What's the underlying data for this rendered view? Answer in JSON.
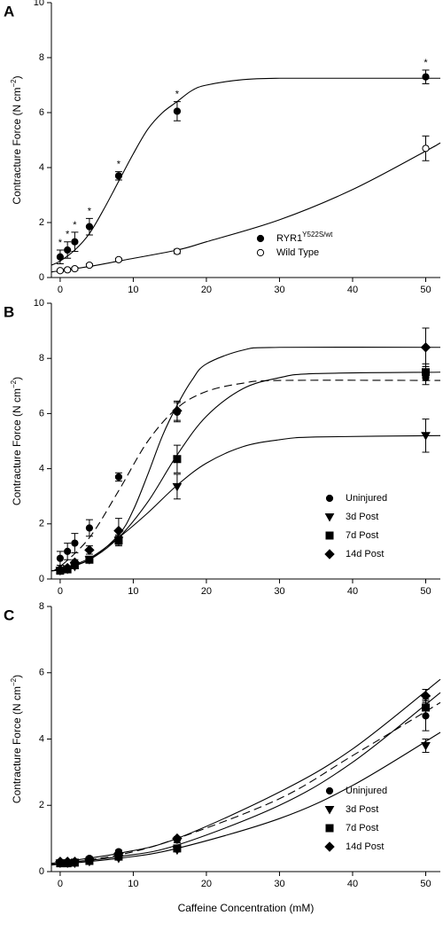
{
  "chart_data": [
    {
      "type": "scatter",
      "label": "A",
      "ylabel": "Contracture Force (N cm",
      "ylabel_sup": "−2",
      "ylabel_end": ")",
      "xlim": [
        -1.2,
        52
      ],
      "xticks": [
        0,
        10,
        20,
        30,
        40,
        50
      ],
      "ylim": [
        0,
        10
      ],
      "yticks": [
        0,
        2,
        4,
        6,
        8,
        10
      ],
      "legend": "lower right",
      "series": [
        {
          "name": "RYR1",
          "name_sup": "Y522S/wt",
          "color": "#000000",
          "marker": "circle",
          "filled": true,
          "x": [
            0,
            1,
            2,
            4,
            8,
            16,
            50
          ],
          "values": [
            0.75,
            1.0,
            1.3,
            1.85,
            3.7,
            6.05,
            7.3
          ],
          "errors": [
            0.25,
            0.3,
            0.35,
            0.3,
            0.15,
            0.35,
            0.25
          ]
        },
        {
          "name": "Wild Type",
          "color": "#000000",
          "marker": "circle",
          "filled": false,
          "x": [
            0,
            1,
            2,
            4,
            8,
            16,
            50
          ],
          "values": [
            0.25,
            0.28,
            0.32,
            0.45,
            0.65,
            0.95,
            4.7
          ],
          "errors": [
            0.05,
            0.05,
            0.05,
            0.05,
            0.05,
            0.08,
            0.45
          ]
        }
      ],
      "asterisks": [
        "*",
        "*",
        "*",
        "*",
        "*",
        "*",
        "*"
      ],
      "fits": [
        {
          "dash": false,
          "x": [
            -1.2,
            0,
            2,
            4,
            6,
            8,
            10,
            12,
            14,
            16,
            18,
            20,
            25,
            30,
            40,
            52
          ],
          "values": [
            0.45,
            0.6,
            1.0,
            1.6,
            2.5,
            3.5,
            4.5,
            5.4,
            6.0,
            6.4,
            6.8,
            7.0,
            7.2,
            7.25,
            7.25,
            7.25
          ]
        },
        {
          "dash": false,
          "x": [
            -1.2,
            0,
            4,
            8,
            16,
            20,
            30,
            40,
            50,
            52
          ],
          "values": [
            0.2,
            0.25,
            0.4,
            0.6,
            1.0,
            1.3,
            2.1,
            3.2,
            4.6,
            4.9
          ]
        }
      ]
    },
    {
      "type": "scatter",
      "label": "B",
      "ylabel": "Contracture Force (N cm",
      "ylabel_sup": "−2",
      "ylabel_end": ")",
      "xlim": [
        -1.2,
        52
      ],
      "xticks": [
        0,
        10,
        20,
        30,
        40,
        50
      ],
      "ylim": [
        0,
        10
      ],
      "yticks": [
        0,
        2,
        4,
        6,
        8,
        10
      ],
      "legend": "lower right",
      "series": [
        {
          "name": "Uninjured",
          "color": "#000000",
          "marker": "circle",
          "filled": true,
          "x": [
            0,
            1,
            2,
            4,
            8,
            16,
            50
          ],
          "values": [
            0.75,
            1.0,
            1.3,
            1.85,
            3.7,
            6.05,
            7.3
          ],
          "errors": [
            0.25,
            0.3,
            0.35,
            0.3,
            0.15,
            0.35,
            0.25
          ]
        },
        {
          "name": "3d Post",
          "color": "#000000",
          "marker": "triangle-down",
          "filled": true,
          "x": [
            0,
            1,
            2,
            4,
            8,
            16,
            50
          ],
          "values": [
            0.3,
            0.35,
            0.45,
            0.7,
            1.4,
            3.35,
            5.2
          ],
          "errors": [
            0.05,
            0.05,
            0.08,
            0.1,
            0.15,
            0.45,
            0.6
          ]
        },
        {
          "name": "7d Post",
          "color": "#000000",
          "marker": "square",
          "filled": true,
          "x": [
            0,
            1,
            2,
            4,
            8,
            16,
            50
          ],
          "values": [
            0.3,
            0.35,
            0.5,
            0.7,
            1.4,
            4.35,
            7.5
          ],
          "errors": [
            0.05,
            0.05,
            0.08,
            0.1,
            0.2,
            0.5,
            0.3
          ]
        },
        {
          "name": "14d Post",
          "color": "#000000",
          "marker": "diamond",
          "filled": true,
          "x": [
            0,
            1,
            2,
            4,
            8,
            16,
            50
          ],
          "values": [
            0.35,
            0.4,
            0.6,
            1.05,
            1.75,
            6.1,
            8.4
          ],
          "errors": [
            0.05,
            0.08,
            0.1,
            0.15,
            0.45,
            0.35,
            0.7
          ]
        }
      ],
      "fits": [
        {
          "dash": true,
          "x": [
            -1.2,
            0,
            4,
            8,
            12,
            16,
            20,
            25,
            30,
            52
          ],
          "values": [
            0.3,
            0.45,
            1.5,
            3.2,
            5.0,
            6.2,
            6.8,
            7.1,
            7.2,
            7.2
          ]
        },
        {
          "dash": false,
          "x": [
            -1.2,
            0,
            4,
            8,
            10,
            12,
            14,
            16,
            18,
            20,
            25,
            30,
            52
          ],
          "values": [
            0.3,
            0.35,
            0.7,
            1.6,
            2.5,
            3.8,
            5.2,
            6.3,
            7.2,
            7.8,
            8.3,
            8.4,
            8.4
          ]
        },
        {
          "dash": false,
          "x": [
            -1.2,
            0,
            4,
            8,
            12,
            16,
            20,
            25,
            30,
            35,
            52
          ],
          "values": [
            0.3,
            0.35,
            0.7,
            1.5,
            2.8,
            4.5,
            5.9,
            6.9,
            7.3,
            7.45,
            7.5
          ]
        },
        {
          "dash": false,
          "x": [
            -1.2,
            0,
            4,
            8,
            12,
            16,
            20,
            25,
            30,
            35,
            52
          ],
          "values": [
            0.3,
            0.35,
            0.75,
            1.5,
            2.4,
            3.4,
            4.2,
            4.8,
            5.05,
            5.15,
            5.2
          ]
        }
      ]
    },
    {
      "type": "scatter",
      "label": "C",
      "ylabel": "Contracture Force (N cm",
      "ylabel_sup": "−2",
      "ylabel_end": ")",
      "xlabel": "Caffeine Concentration (mM)",
      "xlim": [
        -1.2,
        52
      ],
      "xticks": [
        0,
        10,
        20,
        30,
        40,
        50
      ],
      "ylim": [
        0,
        8
      ],
      "yticks": [
        0,
        2,
        4,
        6,
        8
      ],
      "legend": "lower right",
      "series": [
        {
          "name": "Uninjured",
          "color": "#000000",
          "marker": "circle",
          "filled": true,
          "x": [
            0,
            1,
            2,
            4,
            8,
            16,
            50
          ],
          "values": [
            0.25,
            0.25,
            0.28,
            0.4,
            0.6,
            0.95,
            4.7
          ],
          "errors": [
            0.05,
            0.05,
            0.05,
            0.05,
            0.05,
            0.08,
            0.45
          ]
        },
        {
          "name": "3d Post",
          "color": "#000000",
          "marker": "triangle-down",
          "filled": true,
          "x": [
            0,
            1,
            2,
            4,
            8,
            16,
            50
          ],
          "values": [
            0.25,
            0.25,
            0.25,
            0.3,
            0.4,
            0.65,
            3.8
          ],
          "errors": [
            0.05,
            0.05,
            0.05,
            0.05,
            0.05,
            0.05,
            0.2
          ]
        },
        {
          "name": "7d Post",
          "color": "#000000",
          "marker": "square",
          "filled": true,
          "x": [
            0,
            1,
            2,
            4,
            8,
            16,
            50
          ],
          "values": [
            0.25,
            0.25,
            0.27,
            0.32,
            0.45,
            0.7,
            4.95
          ],
          "errors": [
            0.05,
            0.05,
            0.05,
            0.05,
            0.05,
            0.05,
            0.25
          ]
        },
        {
          "name": "14d Post",
          "color": "#000000",
          "marker": "diamond",
          "filled": true,
          "x": [
            0,
            1,
            2,
            4,
            8,
            16,
            50
          ],
          "values": [
            0.3,
            0.3,
            0.3,
            0.35,
            0.55,
            1.0,
            5.3
          ],
          "errors": [
            0.05,
            0.05,
            0.05,
            0.05,
            0.05,
            0.05,
            0.2
          ]
        }
      ],
      "fits": [
        {
          "dash": true,
          "x": [
            -1.2,
            8,
            16,
            30,
            40,
            52
          ],
          "values": [
            0.2,
            0.5,
            1.0,
            2.2,
            3.5,
            5.1
          ]
        },
        {
          "dash": false,
          "x": [
            -1.2,
            8,
            16,
            30,
            40,
            52
          ],
          "values": [
            0.25,
            0.55,
            1.0,
            2.4,
            3.7,
            5.8
          ]
        },
        {
          "dash": false,
          "x": [
            -1.2,
            8,
            16,
            30,
            40,
            52
          ],
          "values": [
            0.22,
            0.45,
            0.8,
            2.0,
            3.3,
            5.4
          ]
        },
        {
          "dash": false,
          "x": [
            -1.2,
            8,
            16,
            30,
            40,
            52
          ],
          "values": [
            0.2,
            0.4,
            0.7,
            1.6,
            2.6,
            4.2
          ]
        }
      ]
    }
  ]
}
